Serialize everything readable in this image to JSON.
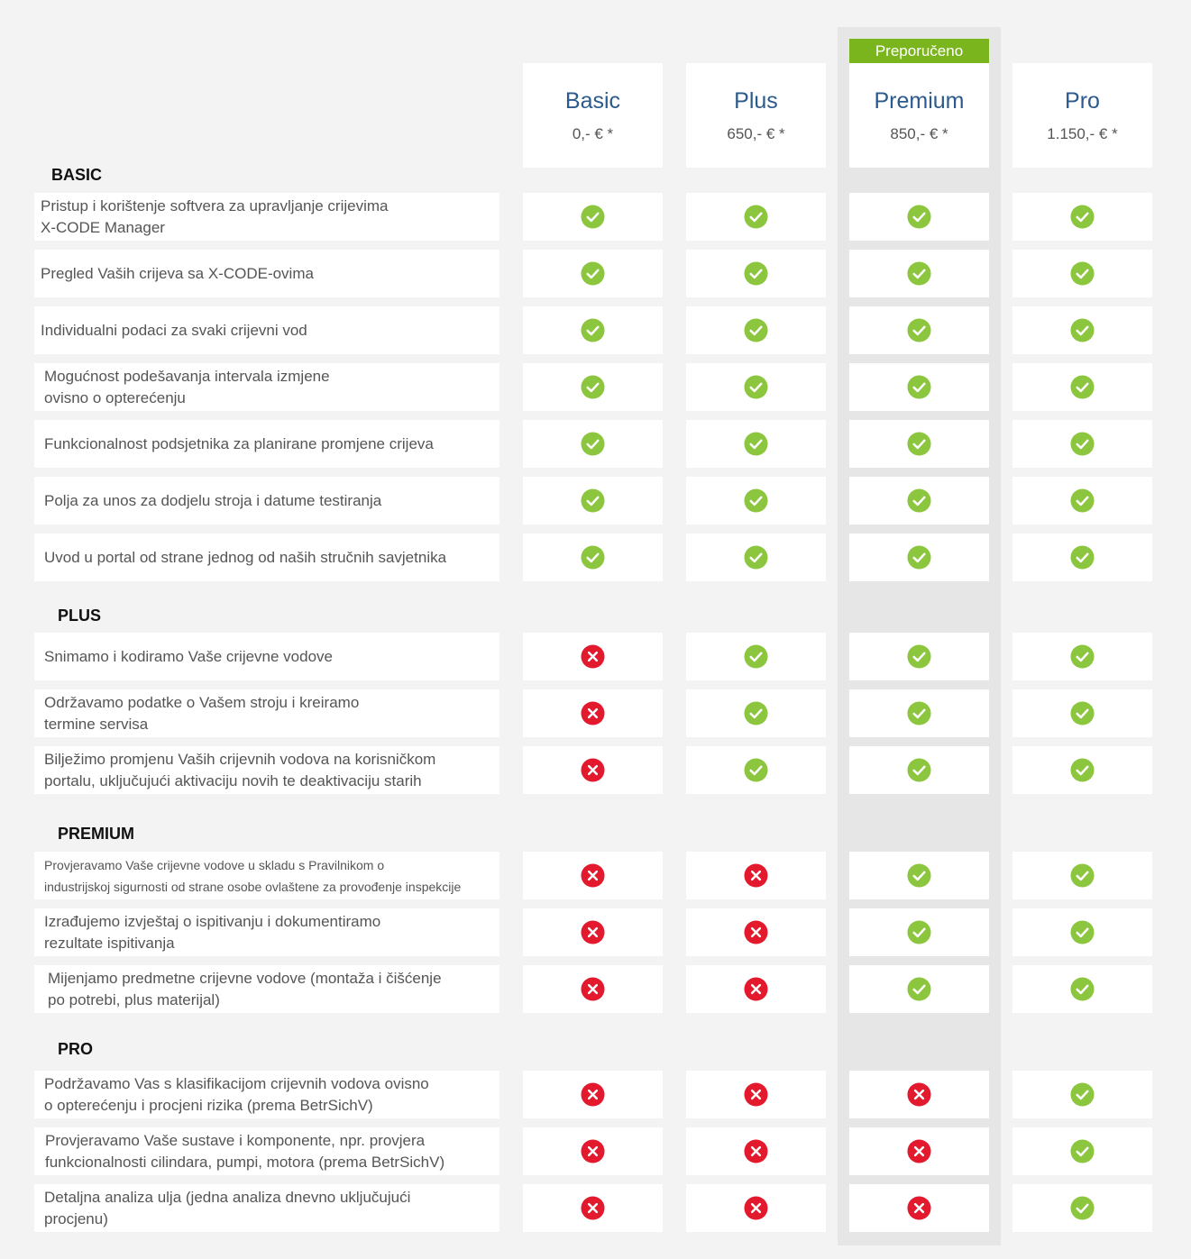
{
  "recommended_label": "Preporučeno",
  "plans": [
    {
      "name": "Basic",
      "price": "0,- € *"
    },
    {
      "name": "Plus",
      "price": "650,- € *"
    },
    {
      "name": "Premium",
      "price": "850,- € *"
    },
    {
      "name": "Pro",
      "price": "1.150,- € *"
    }
  ],
  "colors": {
    "check": "#8cc63f",
    "cross": "#e3192d",
    "title": "#2c5a8c",
    "badge": "#7ab51d"
  },
  "sections": [
    {
      "title": "BASIC",
      "rows": [
        {
          "label": "Pristup i korištenje softvera za upravljanje crijevima\nX-CODE Manager",
          "values": [
            true,
            true,
            true,
            true
          ]
        },
        {
          "label": "Pregled Vaših crijeva sa X-CODE-ovima",
          "values": [
            true,
            true,
            true,
            true
          ]
        },
        {
          "label": "Individualni podaci za svaki crijevni vod",
          "values": [
            true,
            true,
            true,
            true
          ]
        },
        {
          "label": "Mogućnost podešavanja intervala izmjene\novisno o opterećenju",
          "values": [
            true,
            true,
            true,
            true
          ]
        },
        {
          "label": "Funkcionalnost podsjetnika za planirane promjene crijeva",
          "values": [
            true,
            true,
            true,
            true
          ]
        },
        {
          "label": "Polja za unos za dodjelu stroja i datume testiranja",
          "values": [
            true,
            true,
            true,
            true
          ]
        },
        {
          "label": "Uvod u portal od strane jednog od naših stručnih savjetnika",
          "values": [
            true,
            true,
            true,
            true
          ]
        }
      ]
    },
    {
      "title": "PLUS",
      "rows": [
        {
          "label": "Snimamo i kodiramo Vaše crijevne vodove",
          "values": [
            false,
            true,
            true,
            true
          ]
        },
        {
          "label": "Održavamo podatke o Vašem stroju i kreiramo\ntermine servisa",
          "values": [
            false,
            true,
            true,
            true
          ]
        },
        {
          "label": "Bilježimo promjenu Vaših crijevnih vodova  na korisničkom\nportalu, uključujući aktivaciju novih te deaktivaciju starih",
          "values": [
            false,
            true,
            true,
            true
          ]
        }
      ]
    },
    {
      "title": "PREMIUM",
      "rows": [
        {
          "label": "Provjeravamo Vaše crijevne vodove u skladu s Pravilnikom o\nindustrijskoj sigurnosti od strane osobe ovlaštene za provođenje inspekcije",
          "values": [
            false,
            false,
            true,
            true
          ]
        },
        {
          "label": "Izrađujemo izvještaj o ispitivanju i dokumentiramo\nrezultate ispitivanja",
          "values": [
            false,
            false,
            true,
            true
          ]
        },
        {
          "label": "Mijenjamo predmetne crijevne vodove (montaža i čišćenje\npo potrebi, plus materijal)",
          "values": [
            false,
            false,
            true,
            true
          ]
        }
      ]
    },
    {
      "title": "PRO",
      "rows": [
        {
          "label": "Podržavamo Vas s klasifikacijom crijevnih vodova ovisno\no opterećenju i procjeni rizika (prema BetrSichV)",
          "values": [
            false,
            false,
            false,
            true
          ]
        },
        {
          "label": "Provjeravamo Vaše sustave i komponente, npr. provjera\nfunkcionalnosti cilindara, pumpi, motora (prema BetrSichV)",
          "values": [
            false,
            false,
            false,
            true
          ]
        },
        {
          "label": "Detaljna analiza ulja (jedna analiza dnevno uključujući\nprocjenu)",
          "values": [
            false,
            false,
            false,
            true
          ]
        }
      ]
    }
  ]
}
